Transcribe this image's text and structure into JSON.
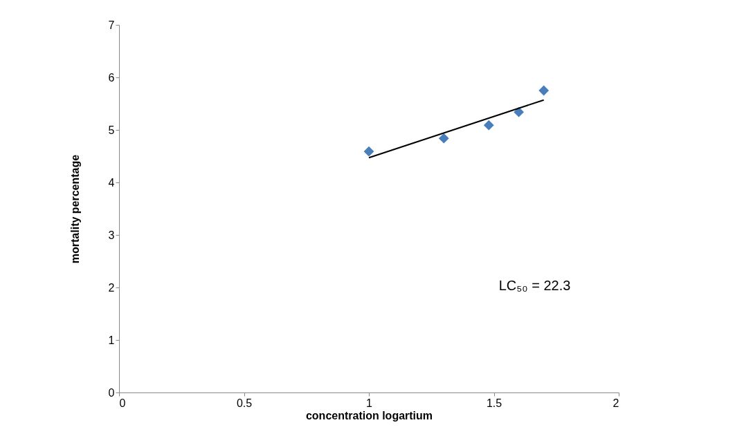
{
  "chart_data": {
    "type": "scatter",
    "xlabel": "concentration logartium",
    "ylabel": "mortality percentage",
    "x": [
      1.0,
      1.3,
      1.48,
      1.6,
      1.7
    ],
    "series": [
      {
        "type": "scatter",
        "color": "#4a7ebb",
        "values": [
          4.59,
          4.84,
          5.09,
          5.34,
          5.75
        ],
        "marker": "diamond"
      },
      {
        "type": "line",
        "color": "#000000",
        "x": [
          1.0,
          1.7
        ],
        "values": [
          4.47,
          5.57
        ],
        "marker": "none",
        "line_style": "solid"
      }
    ],
    "xlim": [
      0,
      2
    ],
    "xticks": [
      0,
      0.5,
      1,
      1.5,
      2
    ],
    "ylim": [
      0,
      7
    ],
    "yticks": [
      0,
      1,
      2,
      3,
      4,
      5,
      6,
      7
    ],
    "grid": false,
    "annotations": [
      "LC₅₀ = 22.3"
    ]
  }
}
